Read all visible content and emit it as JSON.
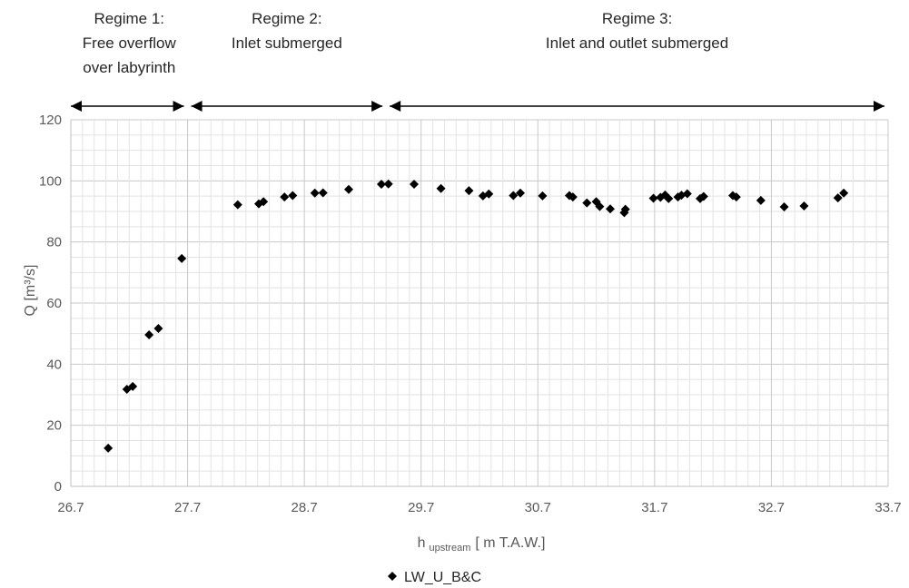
{
  "chart_data": {
    "type": "scatter",
    "ylabel": "Q [m³/s]",
    "xlabel": {
      "main": "h",
      "sub": "upstream",
      "unit": "[ m T.A.W.]"
    },
    "xlim": [
      26.7,
      33.7
    ],
    "ylim": [
      0,
      120
    ],
    "x_ticks": [
      "26.7",
      "27.7",
      "28.7",
      "29.7",
      "30.7",
      "31.7",
      "32.7",
      "33.7"
    ],
    "y_ticks": [
      "0",
      "20",
      "40",
      "60",
      "80",
      "100",
      "120"
    ],
    "grid": true,
    "legend_position": "bottom",
    "series": [
      {
        "name": "LW_U_B&C",
        "color": "#000000",
        "marker": "diamond",
        "points": [
          [
            27.02,
            12.5
          ],
          [
            27.18,
            31.8
          ],
          [
            27.23,
            32.7
          ],
          [
            27.37,
            49.6
          ],
          [
            27.45,
            51.7
          ],
          [
            27.65,
            74.6
          ],
          [
            28.13,
            92.2
          ],
          [
            28.31,
            92.5
          ],
          [
            28.35,
            93.2
          ],
          [
            28.53,
            94.7
          ],
          [
            28.6,
            95.2
          ],
          [
            28.79,
            96.0
          ],
          [
            28.86,
            96.1
          ],
          [
            29.08,
            97.2
          ],
          [
            29.36,
            98.9
          ],
          [
            29.42,
            99.0
          ],
          [
            29.64,
            98.9
          ],
          [
            29.87,
            97.5
          ],
          [
            30.11,
            96.8
          ],
          [
            30.23,
            95.1
          ],
          [
            30.28,
            95.7
          ],
          [
            30.49,
            95.2
          ],
          [
            30.55,
            96.0
          ],
          [
            30.74,
            95.1
          ],
          [
            30.97,
            95.2
          ],
          [
            31.0,
            94.7
          ],
          [
            31.12,
            92.8
          ],
          [
            31.2,
            93.2
          ],
          [
            31.23,
            91.6
          ],
          [
            31.32,
            90.8
          ],
          [
            31.44,
            89.6
          ],
          [
            31.45,
            90.7
          ],
          [
            31.69,
            94.3
          ],
          [
            31.75,
            94.6
          ],
          [
            31.79,
            95.4
          ],
          [
            31.82,
            94.2
          ],
          [
            31.9,
            94.7
          ],
          [
            31.93,
            95.3
          ],
          [
            31.98,
            95.8
          ],
          [
            32.09,
            94.2
          ],
          [
            32.12,
            94.9
          ],
          [
            32.37,
            95.2
          ],
          [
            32.4,
            94.7
          ],
          [
            32.61,
            93.6
          ],
          [
            32.81,
            91.5
          ],
          [
            32.98,
            91.8
          ],
          [
            33.27,
            94.4
          ],
          [
            33.32,
            96.0
          ]
        ]
      }
    ],
    "annotations": [
      {
        "lines": [
          "Regime 1:",
          "Free overflow",
          "over labyrinth"
        ],
        "x_from": 26.7,
        "x_to": 27.7
      },
      {
        "lines": [
          "Regime 2:",
          "Inlet submerged"
        ],
        "x_from": 27.7,
        "x_to": 29.4
      },
      {
        "lines": [
          "Regime 3:",
          "Inlet and outlet submerged"
        ],
        "x_from": 29.4,
        "x_to": 33.7
      }
    ]
  }
}
